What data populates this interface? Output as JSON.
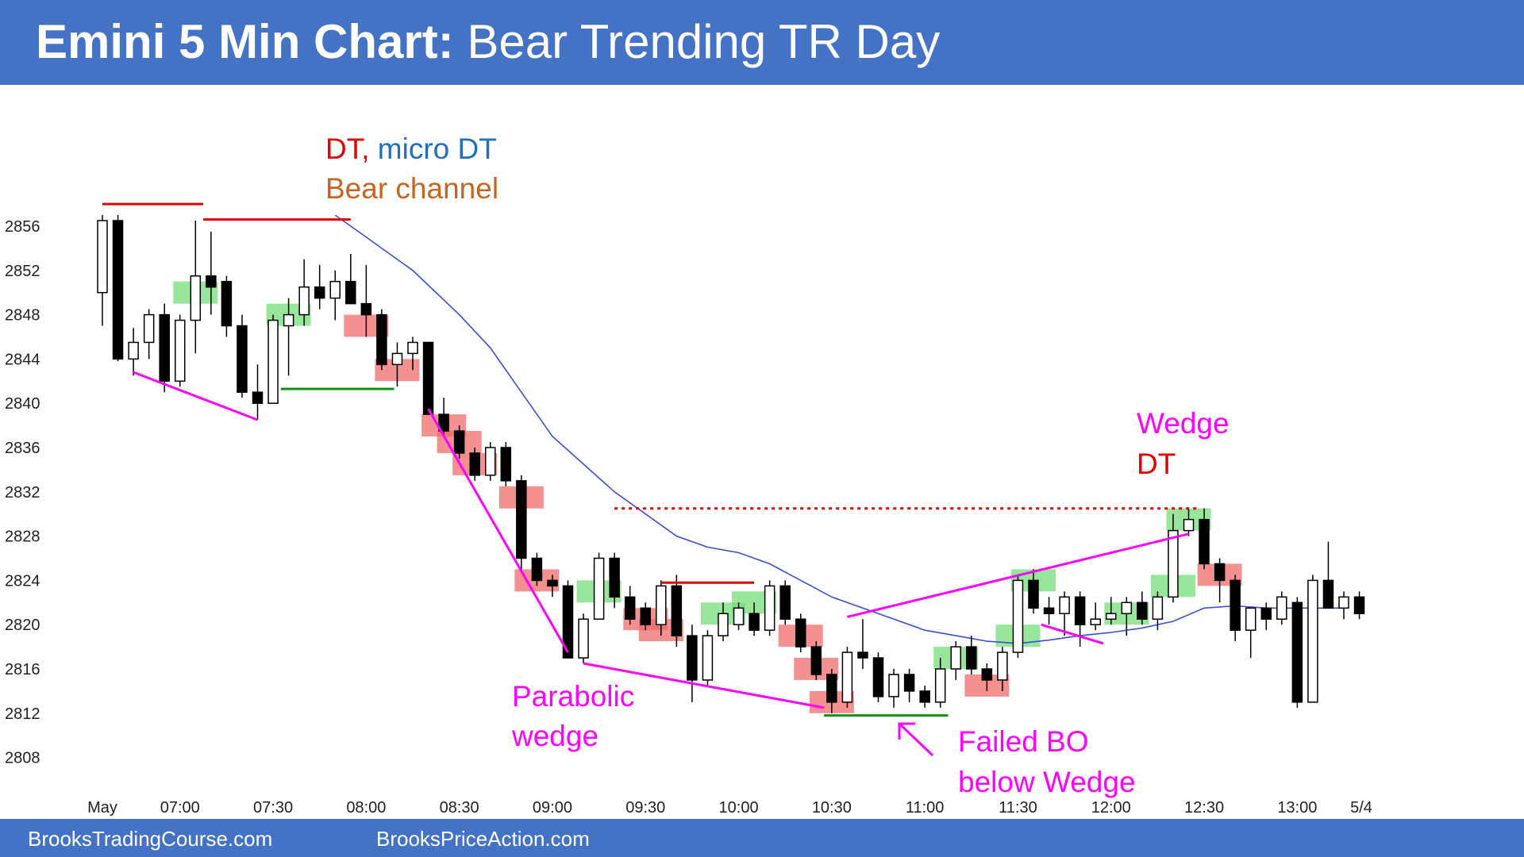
{
  "header": {
    "title_bold": "Emini 5 Min Chart:",
    "title_rest": " Bear Trending TR Day"
  },
  "footer": {
    "left": "BrooksTradingCourse.com",
    "right": "BrooksPriceAction.com"
  },
  "colors": {
    "header_bg": "#4472c4",
    "bull_highlight": "#76dd7a",
    "bear_highlight": "#f06b6b",
    "ema": "#3a4fd6",
    "magenta": "#ff00ff",
    "red": "#e00000",
    "green": "#109010",
    "orange": "#c8641e",
    "blue_text": "#1f6fc0"
  },
  "chart_data": {
    "type": "candlestick",
    "title": "Emini 5 Min Chart: Bear Trending TR Day",
    "ylim": [
      2806,
      2859
    ],
    "y_ticks": [
      2808,
      2812,
      2816,
      2820,
      2824,
      2828,
      2832,
      2836,
      2840,
      2844,
      2848,
      2852,
      2856
    ],
    "x_ticks": [
      {
        "bar": 0,
        "label": "May"
      },
      {
        "bar": 5,
        "label": "07:00"
      },
      {
        "bar": 11,
        "label": "07:30"
      },
      {
        "bar": 17,
        "label": "08:00"
      },
      {
        "bar": 23,
        "label": "08:30"
      },
      {
        "bar": 29,
        "label": "09:00"
      },
      {
        "bar": 35,
        "label": "09:30"
      },
      {
        "bar": 41,
        "label": "10:00"
      },
      {
        "bar": 47,
        "label": "10:30"
      },
      {
        "bar": 53,
        "label": "11:00"
      },
      {
        "bar": 59,
        "label": "11:30"
      },
      {
        "bar": 65,
        "label": "12:00"
      },
      {
        "bar": 71,
        "label": "12:30"
      },
      {
        "bar": 77,
        "label": "13:00"
      },
      {
        "bar": 80,
        "label": "5/4"
      }
    ],
    "candles": [
      {
        "o": 2850.0,
        "h": 2857.0,
        "l": 2847.0,
        "c": 2856.5
      },
      {
        "o": 2856.5,
        "h": 2857.0,
        "l": 2843.8,
        "c": 2844.0
      },
      {
        "o": 2844.0,
        "h": 2846.8,
        "l": 2842.5,
        "c": 2845.5
      },
      {
        "o": 2845.5,
        "h": 2848.5,
        "l": 2844.0,
        "c": 2848.0
      },
      {
        "o": 2848.0,
        "h": 2849.0,
        "l": 2841.0,
        "c": 2842.0
      },
      {
        "o": 2842.0,
        "h": 2848.0,
        "l": 2841.5,
        "c": 2847.5
      },
      {
        "o": 2847.5,
        "h": 2856.5,
        "l": 2844.5,
        "c": 2851.5
      },
      {
        "o": 2851.5,
        "h": 2855.5,
        "l": 2848.0,
        "c": 2850.5
      },
      {
        "o": 2851.0,
        "h": 2851.5,
        "l": 2846.0,
        "c": 2847.0
      },
      {
        "o": 2847.0,
        "h": 2848.0,
        "l": 2840.5,
        "c": 2841.0
      },
      {
        "o": 2841.0,
        "h": 2843.5,
        "l": 2838.5,
        "c": 2840.0
      },
      {
        "o": 2840.0,
        "h": 2848.0,
        "l": 2840.0,
        "c": 2847.5
      },
      {
        "o": 2847.0,
        "h": 2849.5,
        "l": 2842.5,
        "c": 2848.0
      },
      {
        "o": 2848.0,
        "h": 2853.0,
        "l": 2847.0,
        "c": 2850.5
      },
      {
        "o": 2850.5,
        "h": 2852.5,
        "l": 2848.5,
        "c": 2849.5
      },
      {
        "o": 2849.5,
        "h": 2852.0,
        "l": 2847.5,
        "c": 2851.0
      },
      {
        "o": 2851.0,
        "h": 2853.5,
        "l": 2849.0,
        "c": 2849.0
      },
      {
        "o": 2849.0,
        "h": 2852.5,
        "l": 2846.0,
        "c": 2848.0
      },
      {
        "o": 2848.0,
        "h": 2848.5,
        "l": 2843.0,
        "c": 2843.5
      },
      {
        "o": 2843.5,
        "h": 2845.5,
        "l": 2841.5,
        "c": 2844.5
      },
      {
        "o": 2844.5,
        "h": 2846.0,
        "l": 2843.0,
        "c": 2845.5
      },
      {
        "o": 2845.5,
        "h": 2845.5,
        "l": 2839.0,
        "c": 2839.0
      },
      {
        "o": 2839.0,
        "h": 2840.5,
        "l": 2837.0,
        "c": 2837.5
      },
      {
        "o": 2837.5,
        "h": 2838.0,
        "l": 2835.0,
        "c": 2835.5
      },
      {
        "o": 2835.5,
        "h": 2836.0,
        "l": 2833.0,
        "c": 2833.5
      },
      {
        "o": 2833.5,
        "h": 2836.5,
        "l": 2833.0,
        "c": 2836.0
      },
      {
        "o": 2836.0,
        "h": 2836.5,
        "l": 2832.5,
        "c": 2833.0
      },
      {
        "o": 2833.0,
        "h": 2833.5,
        "l": 2825.0,
        "c": 2826.0
      },
      {
        "o": 2826.0,
        "h": 2826.5,
        "l": 2823.5,
        "c": 2824.0
      },
      {
        "o": 2824.0,
        "h": 2824.5,
        "l": 2822.5,
        "c": 2823.5
      },
      {
        "o": 2823.5,
        "h": 2824.0,
        "l": 2817.0,
        "c": 2817.0
      },
      {
        "o": 2817.0,
        "h": 2821.0,
        "l": 2816.5,
        "c": 2820.5
      },
      {
        "o": 2820.5,
        "h": 2826.5,
        "l": 2820.5,
        "c": 2826.0
      },
      {
        "o": 2826.0,
        "h": 2826.5,
        "l": 2821.5,
        "c": 2822.5
      },
      {
        "o": 2822.5,
        "h": 2823.5,
        "l": 2820.0,
        "c": 2820.5
      },
      {
        "o": 2821.5,
        "h": 2822.0,
        "l": 2819.5,
        "c": 2820.0
      },
      {
        "o": 2820.0,
        "h": 2824.0,
        "l": 2819.0,
        "c": 2823.5
      },
      {
        "o": 2823.5,
        "h": 2824.5,
        "l": 2818.0,
        "c": 2819.0
      },
      {
        "o": 2819.0,
        "h": 2820.0,
        "l": 2813.0,
        "c": 2815.0
      },
      {
        "o": 2815.0,
        "h": 2819.5,
        "l": 2814.5,
        "c": 2819.0
      },
      {
        "o": 2819.0,
        "h": 2822.0,
        "l": 2818.5,
        "c": 2821.0
      },
      {
        "o": 2820.0,
        "h": 2822.0,
        "l": 2819.5,
        "c": 2821.5
      },
      {
        "o": 2821.0,
        "h": 2822.0,
        "l": 2819.0,
        "c": 2819.5
      },
      {
        "o": 2819.5,
        "h": 2824.0,
        "l": 2819.0,
        "c": 2823.5
      },
      {
        "o": 2823.5,
        "h": 2824.0,
        "l": 2820.0,
        "c": 2820.5
      },
      {
        "o": 2820.5,
        "h": 2821.0,
        "l": 2817.5,
        "c": 2818.0
      },
      {
        "o": 2818.0,
        "h": 2818.5,
        "l": 2815.0,
        "c": 2815.5
      },
      {
        "o": 2815.5,
        "h": 2816.0,
        "l": 2812.0,
        "c": 2813.0
      },
      {
        "o": 2813.0,
        "h": 2818.0,
        "l": 2812.5,
        "c": 2817.5
      },
      {
        "o": 2817.5,
        "h": 2820.5,
        "l": 2816.0,
        "c": 2817.0
      },
      {
        "o": 2817.0,
        "h": 2817.5,
        "l": 2813.0,
        "c": 2813.5
      },
      {
        "o": 2813.5,
        "h": 2816.0,
        "l": 2812.5,
        "c": 2815.5
      },
      {
        "o": 2815.5,
        "h": 2816.0,
        "l": 2813.0,
        "c": 2814.0
      },
      {
        "o": 2814.0,
        "h": 2814.5,
        "l": 2812.5,
        "c": 2813.0
      },
      {
        "o": 2813.0,
        "h": 2817.0,
        "l": 2812.5,
        "c": 2816.0
      },
      {
        "o": 2816.0,
        "h": 2818.5,
        "l": 2815.0,
        "c": 2818.0
      },
      {
        "o": 2818.0,
        "h": 2819.0,
        "l": 2815.5,
        "c": 2816.0
      },
      {
        "o": 2816.0,
        "h": 2816.5,
        "l": 2814.0,
        "c": 2815.0
      },
      {
        "o": 2815.0,
        "h": 2818.0,
        "l": 2814.0,
        "c": 2817.5
      },
      {
        "o": 2817.5,
        "h": 2824.5,
        "l": 2817.0,
        "c": 2824.0
      },
      {
        "o": 2824.0,
        "h": 2825.0,
        "l": 2821.0,
        "c": 2821.5
      },
      {
        "o": 2821.5,
        "h": 2822.5,
        "l": 2820.0,
        "c": 2821.0
      },
      {
        "o": 2821.0,
        "h": 2823.0,
        "l": 2819.0,
        "c": 2822.5
      },
      {
        "o": 2822.5,
        "h": 2823.0,
        "l": 2818.0,
        "c": 2820.0
      },
      {
        "o": 2820.0,
        "h": 2822.0,
        "l": 2819.5,
        "c": 2820.5
      },
      {
        "o": 2820.5,
        "h": 2822.5,
        "l": 2820.0,
        "c": 2821.0
      },
      {
        "o": 2821.0,
        "h": 2822.5,
        "l": 2819.0,
        "c": 2822.0
      },
      {
        "o": 2822.0,
        "h": 2823.0,
        "l": 2820.0,
        "c": 2820.5
      },
      {
        "o": 2820.5,
        "h": 2823.0,
        "l": 2819.5,
        "c": 2822.5
      },
      {
        "o": 2822.5,
        "h": 2830.0,
        "l": 2822.0,
        "c": 2828.5
      },
      {
        "o": 2828.5,
        "h": 2830.5,
        "l": 2828.0,
        "c": 2829.5
      },
      {
        "o": 2829.5,
        "h": 2830.5,
        "l": 2825.0,
        "c": 2825.5
      },
      {
        "o": 2825.5,
        "h": 2826.0,
        "l": 2822.0,
        "c": 2824.0
      },
      {
        "o": 2824.0,
        "h": 2824.5,
        "l": 2818.5,
        "c": 2819.5
      },
      {
        "o": 2819.5,
        "h": 2821.5,
        "l": 2817.0,
        "c": 2821.5
      },
      {
        "o": 2821.5,
        "h": 2822.0,
        "l": 2819.5,
        "c": 2820.5
      },
      {
        "o": 2820.5,
        "h": 2823.0,
        "l": 2820.0,
        "c": 2822.5
      },
      {
        "o": 2822.0,
        "h": 2822.5,
        "l": 2812.5,
        "c": 2813.0
      },
      {
        "o": 2813.0,
        "h": 2824.5,
        "l": 2813.0,
        "c": 2824.0
      },
      {
        "o": 2824.0,
        "h": 2827.5,
        "l": 2821.5,
        "c": 2821.5
      },
      {
        "o": 2821.5,
        "h": 2823.0,
        "l": 2820.5,
        "c": 2822.5
      },
      {
        "o": 2822.5,
        "h": 2823.0,
        "l": 2820.5,
        "c": 2821.0
      }
    ],
    "ema": [
      [
        15,
        2857.0
      ],
      [
        17,
        2855.0
      ],
      [
        20,
        2852.0
      ],
      [
        23,
        2848.0
      ],
      [
        25,
        2845.0
      ],
      [
        27,
        2841.0
      ],
      [
        29,
        2837.0
      ],
      [
        31,
        2834.5
      ],
      [
        33,
        2832.0
      ],
      [
        35,
        2830.0
      ],
      [
        37,
        2828.0
      ],
      [
        39,
        2827.0
      ],
      [
        41,
        2826.5
      ],
      [
        43,
        2825.5
      ],
      [
        45,
        2824.0
      ],
      [
        47,
        2822.5
      ],
      [
        49,
        2821.5
      ],
      [
        51,
        2820.5
      ],
      [
        53,
        2819.5
      ],
      [
        55,
        2819.0
      ],
      [
        57,
        2818.5
      ],
      [
        59,
        2818.3
      ],
      [
        61,
        2818.6
      ],
      [
        63,
        2819.0
      ],
      [
        65,
        2819.3
      ],
      [
        67,
        2819.7
      ],
      [
        69,
        2820.3
      ],
      [
        71,
        2821.5
      ],
      [
        73,
        2821.7
      ],
      [
        75,
        2821.5
      ],
      [
        77,
        2821.5
      ],
      [
        80,
        2821.5
      ]
    ],
    "highlights": [
      {
        "bar": 6,
        "lo": 2849.0,
        "hi": 2851.0,
        "kind": "bull"
      },
      {
        "bar": 12,
        "lo": 2847.0,
        "hi": 2849.0,
        "kind": "bull"
      },
      {
        "bar": 17,
        "lo": 2846.0,
        "hi": 2848.0,
        "kind": "bear"
      },
      {
        "bar": 19,
        "lo": 2842.0,
        "hi": 2844.0,
        "kind": "bear"
      },
      {
        "bar": 22,
        "lo": 2837.0,
        "hi": 2839.0,
        "kind": "bear"
      },
      {
        "bar": 23,
        "lo": 2835.5,
        "hi": 2837.5,
        "kind": "bear"
      },
      {
        "bar": 24,
        "lo": 2833.5,
        "hi": 2835.5,
        "kind": "bear"
      },
      {
        "bar": 27,
        "lo": 2830.5,
        "hi": 2832.5,
        "kind": "bear"
      },
      {
        "bar": 28,
        "lo": 2823.0,
        "hi": 2825.0,
        "kind": "bear"
      },
      {
        "bar": 32,
        "lo": 2822.0,
        "hi": 2824.0,
        "kind": "bull"
      },
      {
        "bar": 35,
        "lo": 2819.5,
        "hi": 2821.5,
        "kind": "bear"
      },
      {
        "bar": 36,
        "lo": 2818.5,
        "hi": 2820.5,
        "kind": "bear"
      },
      {
        "bar": 40,
        "lo": 2820.0,
        "hi": 2822.0,
        "kind": "bull"
      },
      {
        "bar": 42,
        "lo": 2821.0,
        "hi": 2823.0,
        "kind": "bull"
      },
      {
        "bar": 45,
        "lo": 2818.0,
        "hi": 2820.0,
        "kind": "bear"
      },
      {
        "bar": 46,
        "lo": 2815.0,
        "hi": 2817.0,
        "kind": "bear"
      },
      {
        "bar": 47,
        "lo": 2812.0,
        "hi": 2814.0,
        "kind": "bear"
      },
      {
        "bar": 55,
        "lo": 2816.0,
        "hi": 2818.0,
        "kind": "bull"
      },
      {
        "bar": 57,
        "lo": 2813.5,
        "hi": 2815.5,
        "kind": "bear"
      },
      {
        "bar": 59,
        "lo": 2818.0,
        "hi": 2820.0,
        "kind": "bull"
      },
      {
        "bar": 60,
        "lo": 2823.0,
        "hi": 2825.0,
        "kind": "bull"
      },
      {
        "bar": 66,
        "lo": 2820.0,
        "hi": 2822.0,
        "kind": "bull"
      },
      {
        "bar": 69,
        "lo": 2822.5,
        "hi": 2824.5,
        "kind": "bull"
      },
      {
        "bar": 70,
        "lo": 2828.5,
        "hi": 2830.5,
        "kind": "bull"
      },
      {
        "bar": 72,
        "lo": 2823.5,
        "hi": 2825.5,
        "kind": "bear"
      }
    ],
    "lines": [
      {
        "name": "resistance-1",
        "color": "red",
        "dash": false,
        "x1": 0,
        "y1": 2858.0,
        "x2": 6.5,
        "y2": 2858.0
      },
      {
        "name": "resistance-2",
        "color": "red",
        "dash": false,
        "x1": 6.5,
        "y1": 2856.6,
        "x2": 16.0,
        "y2": 2856.6
      },
      {
        "name": "support-0730",
        "color": "green",
        "dash": false,
        "x1": 11.5,
        "y1": 2841.3,
        "x2": 18.8,
        "y2": 2841.3
      },
      {
        "name": "wedge-low-left",
        "color": "magenta",
        "dash": false,
        "x1": 2.0,
        "y1": 2842.8,
        "x2": 10.0,
        "y2": 2838.5
      },
      {
        "name": "parabolic-channel",
        "color": "magenta",
        "dash": false,
        "x1": 21.0,
        "y1": 2839.5,
        "x2": 30.0,
        "y2": 2817.5
      },
      {
        "name": "wedge-lower",
        "color": "magenta",
        "dash": false,
        "x1": 31.0,
        "y1": 2816.5,
        "x2": 46.5,
        "y2": 2812.5
      },
      {
        "name": "resistance-0945",
        "color": "red",
        "dash": false,
        "x1": 36.0,
        "y1": 2823.8,
        "x2": 42.0,
        "y2": 2823.8
      },
      {
        "name": "support-1030",
        "color": "green",
        "dash": false,
        "x1": 46.5,
        "y1": 2811.8,
        "x2": 54.5,
        "y2": 2811.8
      },
      {
        "name": "wedge-upper",
        "color": "magenta",
        "dash": false,
        "x1": 48.0,
        "y1": 2820.7,
        "x2": 70.0,
        "y2": 2828.2
      },
      {
        "name": "small-line-1145",
        "color": "magenta",
        "dash": false,
        "x1": 60.5,
        "y1": 2820.0,
        "x2": 64.5,
        "y2": 2818.3
      },
      {
        "name": "dt-level",
        "color": "red",
        "dash": true,
        "x1": 33.0,
        "y1": 2830.5,
        "x2": 70.5,
        "y2": 2830.5
      }
    ],
    "annotations": {
      "dt": "DT,",
      "micro_dt": " micro DT",
      "bear_channel": "Bear channel",
      "parabolic": "Parabolic",
      "wedge_word": "wedge",
      "wedge": "Wedge",
      "wedge_dt": "DT",
      "failed_bo": "Failed BO",
      "below_wedge": "below Wedge"
    }
  }
}
